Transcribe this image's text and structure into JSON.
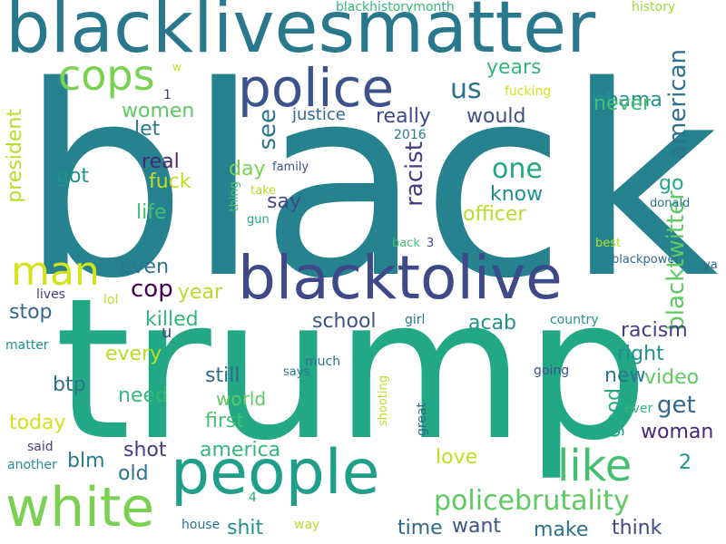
{
  "background": "#ffffff",
  "palette": [
    "#440154",
    "#482878",
    "#3e4989",
    "#31688e",
    "#26828e",
    "#1f9e89",
    "#35b779",
    "#6ece58",
    "#b5de2b",
    "#fde725"
  ],
  "words": [
    {
      "text": "black",
      "color": "#26828e"
    },
    {
      "text": "trump",
      "color": "#22a884"
    },
    {
      "text": "blacklivesmatter",
      "color": "#2a788e"
    },
    {
      "text": "police",
      "color": "#3b528b"
    },
    {
      "text": "blacktolive",
      "color": "#3e4989"
    },
    {
      "text": "people",
      "color": "#1f9e89"
    },
    {
      "text": "white",
      "color": "#7ad151"
    },
    {
      "text": "like",
      "color": "#44bf70"
    },
    {
      "text": "cops",
      "color": "#7ad151"
    },
    {
      "text": "man",
      "color": "#d2e21b"
    },
    {
      "text": "policebrutality",
      "color": "#5ec962"
    },
    {
      "text": "one",
      "color": "#22a884"
    },
    {
      "text": "us",
      "color": "#2c728e"
    },
    {
      "text": "obama",
      "color": "#21918c"
    },
    {
      "text": "years",
      "color": "#35b779"
    },
    {
      "text": "american",
      "color": "#2c728e"
    },
    {
      "text": "blacktwitter",
      "color": "#5ec962"
    },
    {
      "text": "never",
      "color": "#44bf70"
    },
    {
      "text": "really",
      "color": "#3e4989"
    },
    {
      "text": "would",
      "color": "#3b528b"
    },
    {
      "text": "women",
      "color": "#5ec962"
    },
    {
      "text": "justice",
      "color": "#31688e"
    },
    {
      "text": "see",
      "color": "#2a788e"
    },
    {
      "text": "racist",
      "color": "#433e85"
    },
    {
      "text": "know",
      "color": "#21918c"
    },
    {
      "text": "president",
      "color": "#b5de2b"
    },
    {
      "text": "let",
      "color": "#2a788e"
    },
    {
      "text": "real",
      "color": "#482878"
    },
    {
      "text": "got",
      "color": "#21918c"
    },
    {
      "text": "fuck",
      "color": "#c2df23"
    },
    {
      "text": "day",
      "color": "#7ad151"
    },
    {
      "text": "go",
      "color": "#22a884"
    },
    {
      "text": "say",
      "color": "#3e4989"
    },
    {
      "text": "officer",
      "color": "#b5de2b"
    },
    {
      "text": "life",
      "color": "#44bf70"
    },
    {
      "text": "even",
      "color": "#2a788e"
    },
    {
      "text": "cop",
      "color": "#440154"
    },
    {
      "text": "year",
      "color": "#b5de2b"
    },
    {
      "text": "stop",
      "color": "#31688e"
    },
    {
      "text": "killed",
      "color": "#35b779"
    },
    {
      "text": "u",
      "color": "#3e4989"
    },
    {
      "text": "school",
      "color": "#3b528b"
    },
    {
      "text": "acab",
      "color": "#21918c"
    },
    {
      "text": "racism",
      "color": "#433e85"
    },
    {
      "text": "right",
      "color": "#21918c"
    },
    {
      "text": "every",
      "color": "#b5de2b"
    },
    {
      "text": "still",
      "color": "#31688e"
    },
    {
      "text": "btp",
      "color": "#2c728e"
    },
    {
      "text": "need",
      "color": "#35b779"
    },
    {
      "text": "world",
      "color": "#5ec962"
    },
    {
      "text": "new",
      "color": "#2a788e"
    },
    {
      "text": "video",
      "color": "#5ec962"
    },
    {
      "text": "get",
      "color": "#31688e"
    },
    {
      "text": "good",
      "color": "#22a884"
    },
    {
      "text": "first",
      "color": "#44bf70"
    },
    {
      "text": "today",
      "color": "#d2e21b"
    },
    {
      "text": "woman",
      "color": "#482878"
    },
    {
      "text": "shot",
      "color": "#433e85"
    },
    {
      "text": "america",
      "color": "#35b779"
    },
    {
      "text": "blm",
      "color": "#2a788e"
    },
    {
      "text": "old",
      "color": "#2c728e"
    },
    {
      "text": "love",
      "color": "#c2df23"
    },
    {
      "text": "shit",
      "color": "#21918c"
    },
    {
      "text": "time",
      "color": "#31688e"
    },
    {
      "text": "want",
      "color": "#3b528b"
    },
    {
      "text": "make",
      "color": "#2c728e"
    },
    {
      "text": "think",
      "color": "#3e4989"
    },
    {
      "text": "2",
      "color": "#21918c"
    },
    {
      "text": "blackhistorymonth",
      "color": "#35b779"
    },
    {
      "text": "history",
      "color": "#a0da39"
    },
    {
      "text": "w",
      "color": "#c2df23"
    },
    {
      "text": "1",
      "color": "#433e85"
    },
    {
      "text": "fucking",
      "color": "#d2e21b"
    },
    {
      "text": "2016",
      "color": "#2a788e"
    },
    {
      "text": "family",
      "color": "#3b528b"
    },
    {
      "text": "thing",
      "color": "#44bf70"
    },
    {
      "text": "take",
      "color": "#b5de2b"
    },
    {
      "text": "gun",
      "color": "#22a884"
    },
    {
      "text": "donald",
      "color": "#2a788e"
    },
    {
      "text": "back",
      "color": "#44bf70"
    },
    {
      "text": "3",
      "color": "#3e4989"
    },
    {
      "text": "best",
      "color": "#b5de2b"
    },
    {
      "text": "blackpower",
      "color": "#31688e"
    },
    {
      "text": "ya",
      "color": "#31688e"
    },
    {
      "text": "lives",
      "color": "#433e85"
    },
    {
      "text": "lol",
      "color": "#c2df23"
    },
    {
      "text": "girl",
      "color": "#2a788e"
    },
    {
      "text": "country",
      "color": "#21918c"
    },
    {
      "text": "matter",
      "color": "#21918c"
    },
    {
      "text": "much",
      "color": "#2c728e"
    },
    {
      "text": "says",
      "color": "#2a788e"
    },
    {
      "text": "going",
      "color": "#3b528b"
    },
    {
      "text": "shooting",
      "color": "#b5de2b"
    },
    {
      "text": "great",
      "color": "#31688e"
    },
    {
      "text": "ever",
      "color": "#35b779"
    },
    {
      "text": "said",
      "color": "#433e85"
    },
    {
      "text": "another",
      "color": "#21918c"
    },
    {
      "text": "4",
      "color": "#22a884"
    },
    {
      "text": "house",
      "color": "#2c728e"
    },
    {
      "text": "way",
      "color": "#b5de2b"
    }
  ]
}
